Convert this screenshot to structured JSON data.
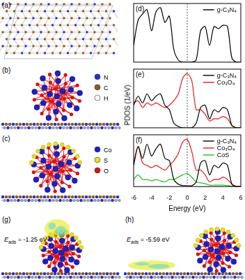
{
  "structures": [
    {
      "panel_label": "(a)"
    },
    {
      "panel_label": "(b)",
      "legend": [
        {
          "name": "N",
          "color": "#2233cc"
        },
        {
          "name": "C",
          "color": "#8a5a2e"
        },
        {
          "name": "H",
          "color": "#ffffff"
        }
      ]
    },
    {
      "panel_label": "(c)",
      "legend": [
        {
          "name": "Co",
          "color": "#1f1fc0"
        },
        {
          "name": "S",
          "color": "#e8e020"
        },
        {
          "name": "O",
          "color": "#dd1111"
        }
      ]
    },
    {
      "panel_label": "(g)",
      "energy_label": {
        "symbol": "E",
        "subscript": "ads",
        "relation": "=",
        "value": -1.25,
        "unit": "eV"
      }
    },
    {
      "panel_label": "(h)",
      "energy_label": {
        "symbol": "E",
        "subscript": "ads",
        "relation": "=",
        "value": -5.59,
        "unit": "eV"
      }
    }
  ],
  "chart_data": [
    {
      "type": "line",
      "panel_label": "(d)",
      "x": [
        -6,
        -5.5,
        -5,
        -4.5,
        -4,
        -3.5,
        -3,
        -2.5,
        -2,
        -1.5,
        -1,
        -0.5,
        0,
        0.5,
        1,
        1.5,
        2,
        2.5,
        3,
        3.5,
        4,
        4.5,
        5,
        5.5,
        6
      ],
      "series": [
        {
          "name": "g-C₃N₄",
          "color": "#000000",
          "values": [
            40,
            100,
            115,
            125,
            75,
            120,
            130,
            95,
            110,
            30,
            5,
            0,
            0,
            0,
            5,
            75,
            85,
            40,
            85,
            80,
            88,
            85,
            10,
            0,
            0
          ]
        }
      ],
      "xlim": [
        -6,
        6
      ],
      "xticks": [
        -6,
        -4,
        -2,
        0,
        2,
        4,
        6
      ],
      "ylim": [
        0,
        140
      ],
      "tick_labels": false,
      "legend": "upper right",
      "fermi_level": 0
    },
    {
      "type": "line",
      "panel_label": "(e)",
      "ylabel": "PDOS (1/eV)",
      "x": [
        -6,
        -5.5,
        -5,
        -4.5,
        -4,
        -3.5,
        -3,
        -2.5,
        -2,
        -1.5,
        -1,
        -0.5,
        0,
        0.5,
        1,
        1.5,
        2,
        2.5,
        3,
        3.5,
        4,
        4.5,
        5,
        5.5,
        6
      ],
      "series": [
        {
          "name": "g-C₃N₄",
          "color": "#000000",
          "values": [
            50,
            70,
            55,
            75,
            60,
            70,
            75,
            50,
            40,
            10,
            3,
            0,
            0,
            0,
            10,
            45,
            50,
            20,
            40,
            35,
            45,
            40,
            5,
            0,
            0
          ]
        },
        {
          "name": "Co₃O₄",
          "color": "#e41a1c",
          "values": [
            55,
            60,
            45,
            55,
            50,
            55,
            50,
            45,
            50,
            60,
            75,
            110,
            120,
            105,
            40,
            40,
            30,
            15,
            20,
            20,
            25,
            20,
            5,
            0,
            0
          ]
        }
      ],
      "xlim": [
        -6,
        6
      ],
      "xticks": [
        -6,
        -4,
        -2,
        0,
        2,
        4,
        6
      ],
      "ylim": [
        0,
        130
      ],
      "tick_labels": false,
      "legend": "upper right",
      "fermi_level": 0
    },
    {
      "type": "line",
      "panel_label": "(f)",
      "xlabel": "Energy (eV)",
      "x": [
        -6,
        -5.5,
        -5,
        -4.5,
        -4,
        -3.5,
        -3,
        -2.5,
        -2,
        -1.5,
        -1,
        -0.5,
        0,
        0.5,
        1,
        1.5,
        2,
        2.5,
        3,
        3.5,
        4,
        4.5,
        5,
        5.5,
        6
      ],
      "series": [
        {
          "name": "g-C₃N₄",
          "color": "#000000",
          "values": [
            45,
            85,
            60,
            90,
            65,
            80,
            90,
            60,
            55,
            15,
            5,
            2,
            2,
            2,
            10,
            50,
            55,
            25,
            45,
            40,
            50,
            45,
            5,
            0,
            0
          ]
        },
        {
          "name": "Co₃O₄",
          "color": "#e41a1c",
          "values": [
            50,
            85,
            50,
            45,
            40,
            45,
            40,
            35,
            45,
            55,
            70,
            95,
            100,
            75,
            35,
            35,
            25,
            10,
            15,
            15,
            20,
            15,
            5,
            0,
            0
          ]
        },
        {
          "name": "CoS",
          "color": "#22bb22",
          "values": [
            15,
            25,
            15,
            15,
            12,
            15,
            12,
            10,
            15,
            15,
            20,
            25,
            28,
            20,
            10,
            8,
            6,
            3,
            3,
            3,
            3,
            2,
            1,
            0,
            0
          ]
        }
      ],
      "xlim": [
        -6,
        6
      ],
      "xticks": [
        -6,
        -4,
        -2,
        0,
        2,
        4,
        6
      ],
      "ylim": [
        0,
        110
      ],
      "tick_labels": "x",
      "legend": "upper right",
      "fermi_level": 0
    }
  ]
}
